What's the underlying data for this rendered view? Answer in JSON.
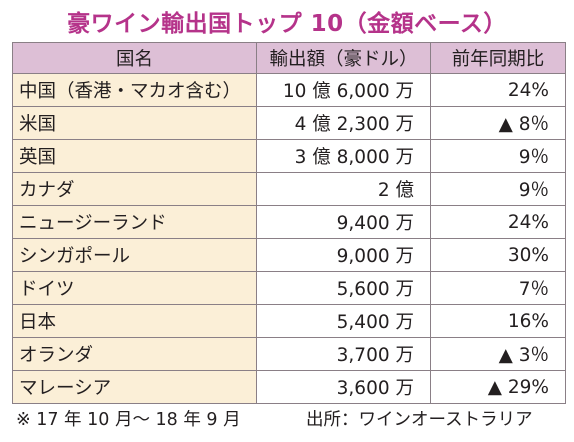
{
  "title": "豪ワイン輸出国トップ 10（金額ベース）",
  "table": {
    "headers": [
      "国名",
      "輸出額（豪ドル）",
      "前年同期比"
    ],
    "rows": [
      {
        "country": "中国（香港・マカオ含む）",
        "amount": "10 億 6,000 万",
        "change": "24%"
      },
      {
        "country": "米国",
        "amount": "4 億 2,300 万",
        "change": "▲ 8％"
      },
      {
        "country": "英国",
        "amount": "3 億 8,000 万",
        "change": "9％"
      },
      {
        "country": "カナダ",
        "amount": "2 億",
        "change": "9％"
      },
      {
        "country": "ニュージーランド",
        "amount": "9,400 万",
        "change": "24%"
      },
      {
        "country": "シンガポール",
        "amount": "9,000 万",
        "change": "30%"
      },
      {
        "country": "ドイツ",
        "amount": "5,600 万",
        "change": "7％"
      },
      {
        "country": "日本",
        "amount": "5,400 万",
        "change": "16%"
      },
      {
        "country": "オランダ",
        "amount": "3,700 万",
        "change": "▲ 3％"
      },
      {
        "country": "マレーシア",
        "amount": "3,600 万",
        "change": "▲ 29%"
      }
    ]
  },
  "footer": {
    "note": "※ 17 年 10 月〜 18 年 9 月",
    "source": "出所：ワインオーストラリア"
  },
  "colors": {
    "title": "#b5338a",
    "header_bg": "#ddbfd6",
    "country_bg": "#fbefd7",
    "border": "#8a7f86"
  }
}
